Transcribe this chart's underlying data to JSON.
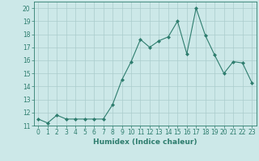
{
  "x": [
    0,
    1,
    2,
    3,
    4,
    5,
    6,
    7,
    8,
    9,
    10,
    11,
    12,
    13,
    14,
    15,
    16,
    17,
    18,
    19,
    20,
    21,
    22,
    23
  ],
  "y": [
    11.5,
    11.2,
    11.8,
    11.5,
    11.5,
    11.5,
    11.5,
    11.5,
    12.6,
    14.5,
    15.9,
    17.6,
    17.0,
    17.5,
    17.8,
    19.0,
    16.5,
    20.0,
    17.9,
    16.4,
    15.0,
    15.9,
    15.8,
    14.3
  ],
  "line_color": "#2e7d6e",
  "marker": "D",
  "marker_size": 2.0,
  "bg_color": "#cce8e8",
  "grid_color": "#aacccc",
  "xlabel": "Humidex (Indice chaleur)",
  "xlim": [
    -0.5,
    23.5
  ],
  "ylim": [
    11,
    20.5
  ],
  "yticks": [
    11,
    12,
    13,
    14,
    15,
    16,
    17,
    18,
    19,
    20
  ],
  "xticks": [
    0,
    1,
    2,
    3,
    4,
    5,
    6,
    7,
    8,
    9,
    10,
    11,
    12,
    13,
    14,
    15,
    16,
    17,
    18,
    19,
    20,
    21,
    22,
    23
  ],
  "tick_label_size": 5.5,
  "xlabel_size": 6.5,
  "line_width": 0.8
}
